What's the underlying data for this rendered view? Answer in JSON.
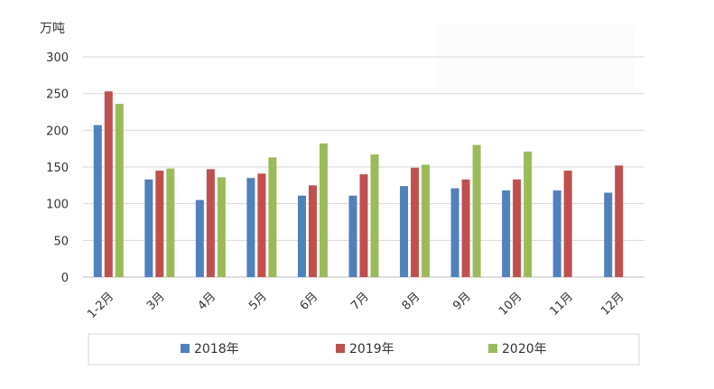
{
  "chart_data": {
    "type": "bar",
    "title": "",
    "unit_label": "万吨",
    "xlabel": "",
    "ylabel": "",
    "ylim": [
      0,
      300
    ],
    "yticks": [
      0,
      50,
      100,
      150,
      200,
      250,
      300
    ],
    "grid": true,
    "legend_position": "bottom",
    "categories": [
      "1-2月",
      "3月",
      "4月",
      "5月",
      "6月",
      "7月",
      "8月",
      "9月",
      "10月",
      "11月",
      "12月"
    ],
    "series": [
      {
        "name": "2018年",
        "color": "#4f81bd",
        "values": [
          207,
          133,
          105,
          135,
          111,
          111,
          124,
          121,
          118,
          118,
          115
        ]
      },
      {
        "name": "2019年",
        "color": "#c0504d",
        "values": [
          253,
          145,
          147,
          141,
          125,
          140,
          149,
          133,
          133,
          145,
          152
        ]
      },
      {
        "name": "2020年",
        "color": "#9bbb59",
        "values": [
          236,
          148,
          136,
          163,
          182,
          167,
          153,
          180,
          171,
          null,
          null
        ]
      }
    ]
  }
}
